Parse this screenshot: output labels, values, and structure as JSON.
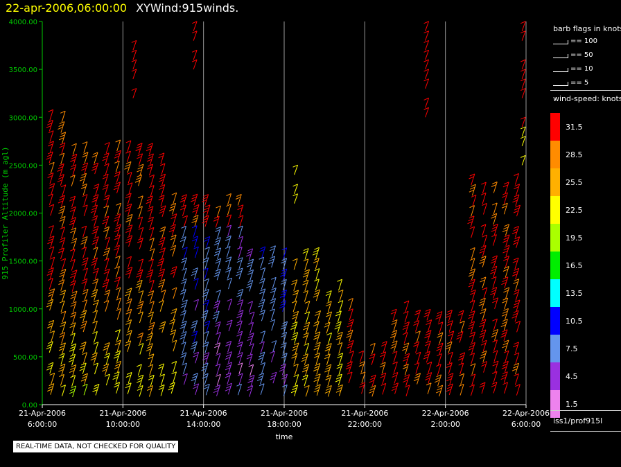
{
  "header": {
    "date_label": "22-apr-2006,06:00:00",
    "product_label": "XYWind:915winds."
  },
  "chart_data": {
    "type": "scatter",
    "title": "XYWind:915winds.",
    "xlabel": "time",
    "ylabel": "915 Profiler Altitude (m agl)",
    "x_ticks": [
      [
        "21-Apr-2006",
        "6:00:00"
      ],
      [
        "21-Apr-2006",
        "10:00:00"
      ],
      [
        "21-Apr-2006",
        "14:00:00"
      ],
      [
        "21-Apr-2006",
        "18:00:00"
      ],
      [
        "21-Apr-2006",
        "22:00:00"
      ],
      [
        "22-Apr-2006",
        "2:00:00"
      ],
      [
        "22-Apr-2006",
        "6:00:00"
      ]
    ],
    "xlim_hours": [
      0,
      24
    ],
    "ylim": [
      0,
      4000
    ],
    "y_ticks": [
      "0.00",
      "500.00",
      "1000.00",
      "1500.00",
      "2000.00",
      "2500.00",
      "3000.00",
      "3500.00",
      "4000.00"
    ],
    "grid": "vertical",
    "encoding": "wind barbs, colored by wind speed (knots)",
    "speed_bins": [
      {
        "label": "31.5",
        "color": "#ff0000"
      },
      {
        "label": "28.5",
        "color": "#ff8c00"
      },
      {
        "label": "25.5",
        "color": "#ffb000"
      },
      {
        "label": "22.5",
        "color": "#ffff00"
      },
      {
        "label": "19.5",
        "color": "#aaff00"
      },
      {
        "label": "16.5",
        "color": "#00ee00"
      },
      {
        "label": "13.5",
        "color": "#00ffff"
      },
      {
        "label": "10.5",
        "color": "#0000ff"
      },
      {
        "label": "7.5",
        "color": "#6495ed"
      },
      {
        "label": "4.5",
        "color": "#9a30e0"
      },
      {
        "label": "1.5",
        "color": "#ee82ee"
      }
    ]
  },
  "legend": {
    "flags_title": "barb flags in knots",
    "flags": [
      "== 100",
      "== 50",
      "== 10",
      "== 5"
    ],
    "speed_title": "wind-speed: knots",
    "station": "iss1/prof915l"
  },
  "footer": {
    "quality_note": "REAL-TIME DATA, NOT CHECKED FOR QUALITY"
  }
}
